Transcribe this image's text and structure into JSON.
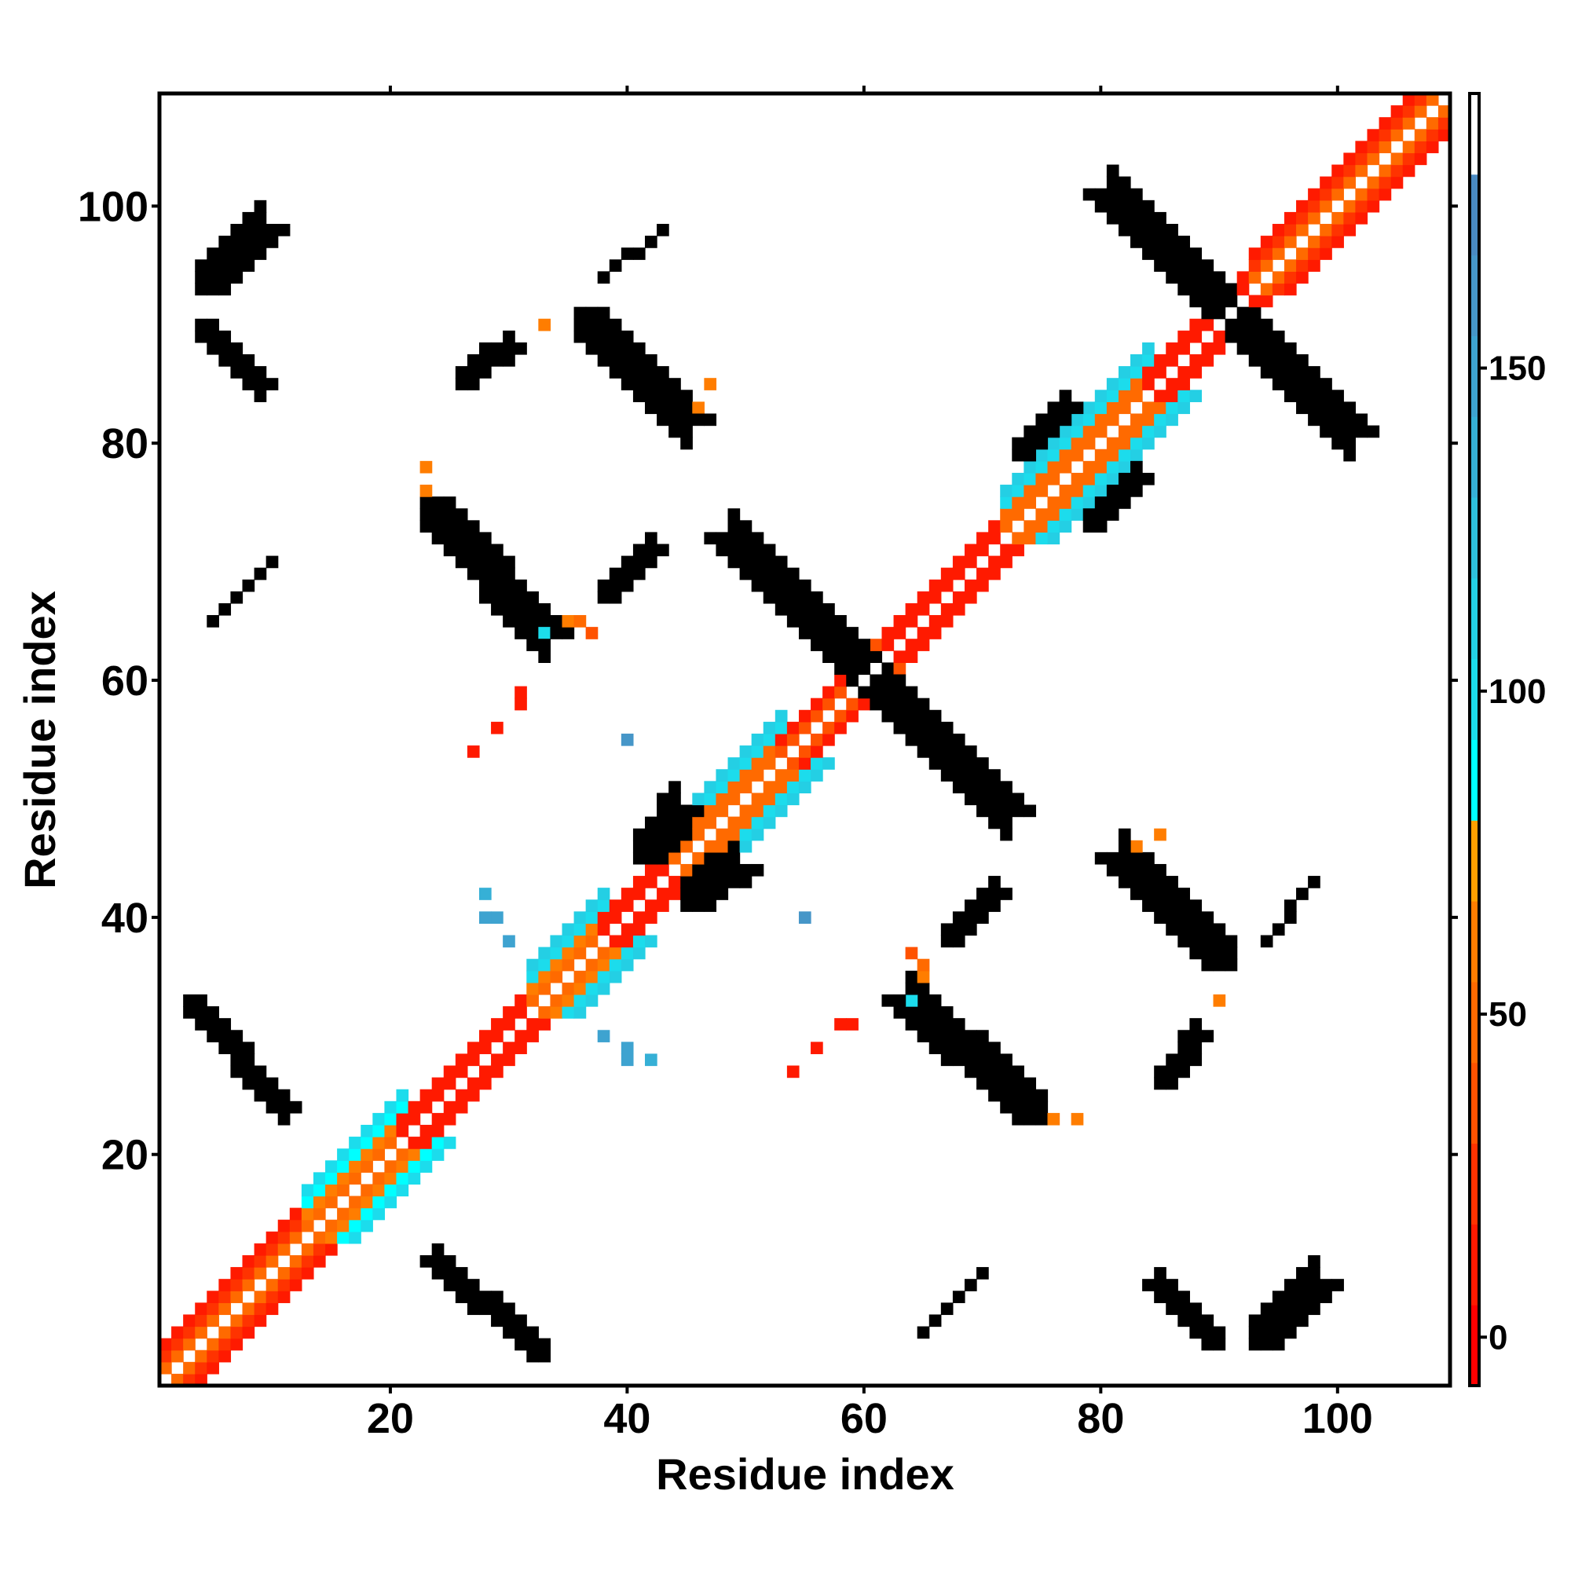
{
  "chart_data": {
    "type": "heatmap",
    "title": "",
    "xlabel": "Residue index",
    "ylabel": "Residue index",
    "n_residues": 109,
    "xlim": [
      0.5,
      109.5
    ],
    "ylim": [
      0.5,
      109.5
    ],
    "x_ticks": [
      20,
      40,
      60,
      80,
      100
    ],
    "y_ticks": [
      20,
      40,
      60,
      80,
      100
    ],
    "x_tick_labels": [
      "20",
      "40",
      "60",
      "80",
      "100"
    ],
    "y_tick_labels": [
      "20",
      "40",
      "60",
      "80",
      "100"
    ],
    "colorbar": {
      "range": [
        -7.5,
        192.5
      ],
      "band_width": 12.5,
      "ticks": [
        0,
        50,
        100,
        150
      ],
      "tick_labels": [
        "0",
        "50",
        "100",
        "150"
      ],
      "colors": [
        "#ff0000",
        "#ff1a00",
        "#ff3300",
        "#ff5200",
        "#ff6a00",
        "#ff7d00",
        "#ffa000",
        "#00ffff",
        "#1cdcec",
        "#24cfe4",
        "#2ec0dc",
        "#36b0d6",
        "#3ea3d0",
        "#4696c8",
        "#4a8ac2",
        "#ffffff"
      ],
      "placement": "right"
    },
    "symmetric": true,
    "diagonal_segments": [
      {
        "from": 1,
        "to": 13,
        "offsets": {
          "1": 50,
          "2": 25,
          "3": 10
        }
      },
      {
        "from": 13,
        "to": 21,
        "offsets": {
          "1": 45,
          "2": 55,
          "3": 90,
          "4": 100
        }
      },
      {
        "from": 21,
        "to": 32,
        "offsets": {
          "1": 5,
          "2": 10
        }
      },
      {
        "from": 32,
        "to": 38,
        "offsets": {
          "1": 45,
          "2": 55,
          "3": 95,
          "4": 105
        }
      },
      {
        "from": 38,
        "to": 44,
        "offsets": {
          "1": 5,
          "2": 10
        }
      },
      {
        "from": 44,
        "to": 53,
        "offsets": {
          "1": 45,
          "2": 50,
          "3": 95,
          "4": 105
        }
      },
      {
        "from": 53,
        "to": 60,
        "offsets": {
          "1": 30,
          "2": 15
        }
      },
      {
        "from": 60,
        "to": 62,
        "offsets": {
          "1": 45,
          "2": 40
        }
      },
      {
        "from": 62,
        "to": 72,
        "offsets": {
          "1": 5,
          "2": 10
        }
      },
      {
        "from": 72,
        "to": 84,
        "offsets": {
          "1": 45,
          "2": 50,
          "3": 95,
          "4": 105
        }
      },
      {
        "from": 84,
        "to": 93,
        "offsets": {
          "1": 5,
          "2": 10
        }
      },
      {
        "from": 93,
        "to": 109,
        "offsets": {
          "1": 45,
          "2": 20,
          "3": 10
        }
      }
    ],
    "contact_segments": [
      {
        "from": [
          4,
          93
        ],
        "to": [
          9,
          98
        ],
        "width": 3,
        "value": 10
      },
      {
        "from": [
          4,
          90
        ],
        "to": [
          9,
          85
        ],
        "width": 2,
        "value": 160
      },
      {
        "from": [
          38,
          94
        ],
        "to": [
          43,
          98
        ],
        "width": 1,
        "value": 40
      },
      {
        "from": [
          26,
          85
        ],
        "to": [
          30,
          88
        ],
        "width": 2,
        "value": 15
      },
      {
        "from": [
          36,
          91
        ],
        "to": [
          45,
          82
        ],
        "width": 3,
        "value": 160
      },
      {
        "from": [
          82,
          100
        ],
        "to": [
          101,
          81
        ],
        "width": 3,
        "value": 160
      },
      {
        "from": [
          23,
          75
        ],
        "to": [
          33,
          64
        ],
        "width": 3,
        "value": 158
      },
      {
        "from": [
          49,
          72
        ],
        "to": [
          72,
          49
        ],
        "width": 3,
        "value": 160
      },
      {
        "from": [
          3,
          33
        ],
        "to": [
          11,
          24
        ],
        "width": 2,
        "value": 160
      },
      {
        "from": [
          5,
          65
        ],
        "to": [
          10,
          70
        ],
        "width": 1,
        "value": 40
      },
      {
        "from": [
          38,
          67
        ],
        "to": [
          42,
          71
        ],
        "width": 2,
        "value": 15
      },
      {
        "from": [
          41,
          45
        ],
        "to": [
          44,
          49
        ],
        "width": 3,
        "value": 110
      },
      {
        "from": [
          73,
          79
        ],
        "to": [
          77,
          83
        ],
        "width": 2,
        "value": 110
      }
    ],
    "contact_points": [
      [
        23,
        76,
        65
      ],
      [
        23,
        78,
        65
      ],
      [
        33,
        90,
        55
      ],
      [
        27,
        54,
        10
      ],
      [
        29,
        56,
        10
      ],
      [
        31,
        58,
        10
      ],
      [
        31,
        59,
        10
      ],
      [
        40,
        55,
        160
      ],
      [
        28,
        42,
        140
      ],
      [
        28,
        40,
        150
      ],
      [
        29,
        40,
        150
      ],
      [
        30,
        38,
        150
      ],
      [
        46,
        83,
        55
      ],
      [
        47,
        85,
        55
      ],
      [
        35,
        65,
        55
      ],
      [
        36,
        65,
        45
      ],
      [
        33,
        64,
        100
      ],
      [
        64,
        37,
        30
      ]
    ]
  }
}
